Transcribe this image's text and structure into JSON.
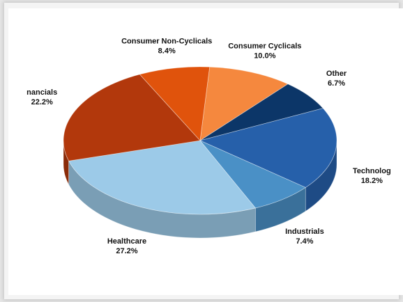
{
  "chart_data": {
    "type": "pie",
    "title": "",
    "style": "3d",
    "slices": [
      {
        "label": "Consumer Cyclicals",
        "display_label": "Consumer Cyclicals",
        "pct_label": "10.0%",
        "value": 10.0,
        "color": "#f5883e"
      },
      {
        "label": "Other",
        "display_label": "Other",
        "pct_label": "6.7%",
        "value": 6.7,
        "color": "#0c3668"
      },
      {
        "label": "Technology",
        "display_label": "Technolog",
        "pct_label": "18.2%",
        "value": 18.2,
        "color": "#2660aa"
      },
      {
        "label": "Industrials",
        "display_label": "Industrials",
        "pct_label": "7.4%",
        "value": 7.4,
        "color": "#4a90c6"
      },
      {
        "label": "Healthcare",
        "display_label": "Healthcare",
        "pct_label": "27.2%",
        "value": 27.2,
        "color": "#9ccae8"
      },
      {
        "label": "Financials",
        "display_label": "nancials",
        "pct_label": "22.2%",
        "value": 22.2,
        "color": "#b2380c"
      },
      {
        "label": "Consumer Non-Cyclicals",
        "display_label": "Consumer Non-Cyclicals",
        "pct_label": "8.4%",
        "value": 8.4,
        "color": "#e0530c"
      }
    ]
  }
}
